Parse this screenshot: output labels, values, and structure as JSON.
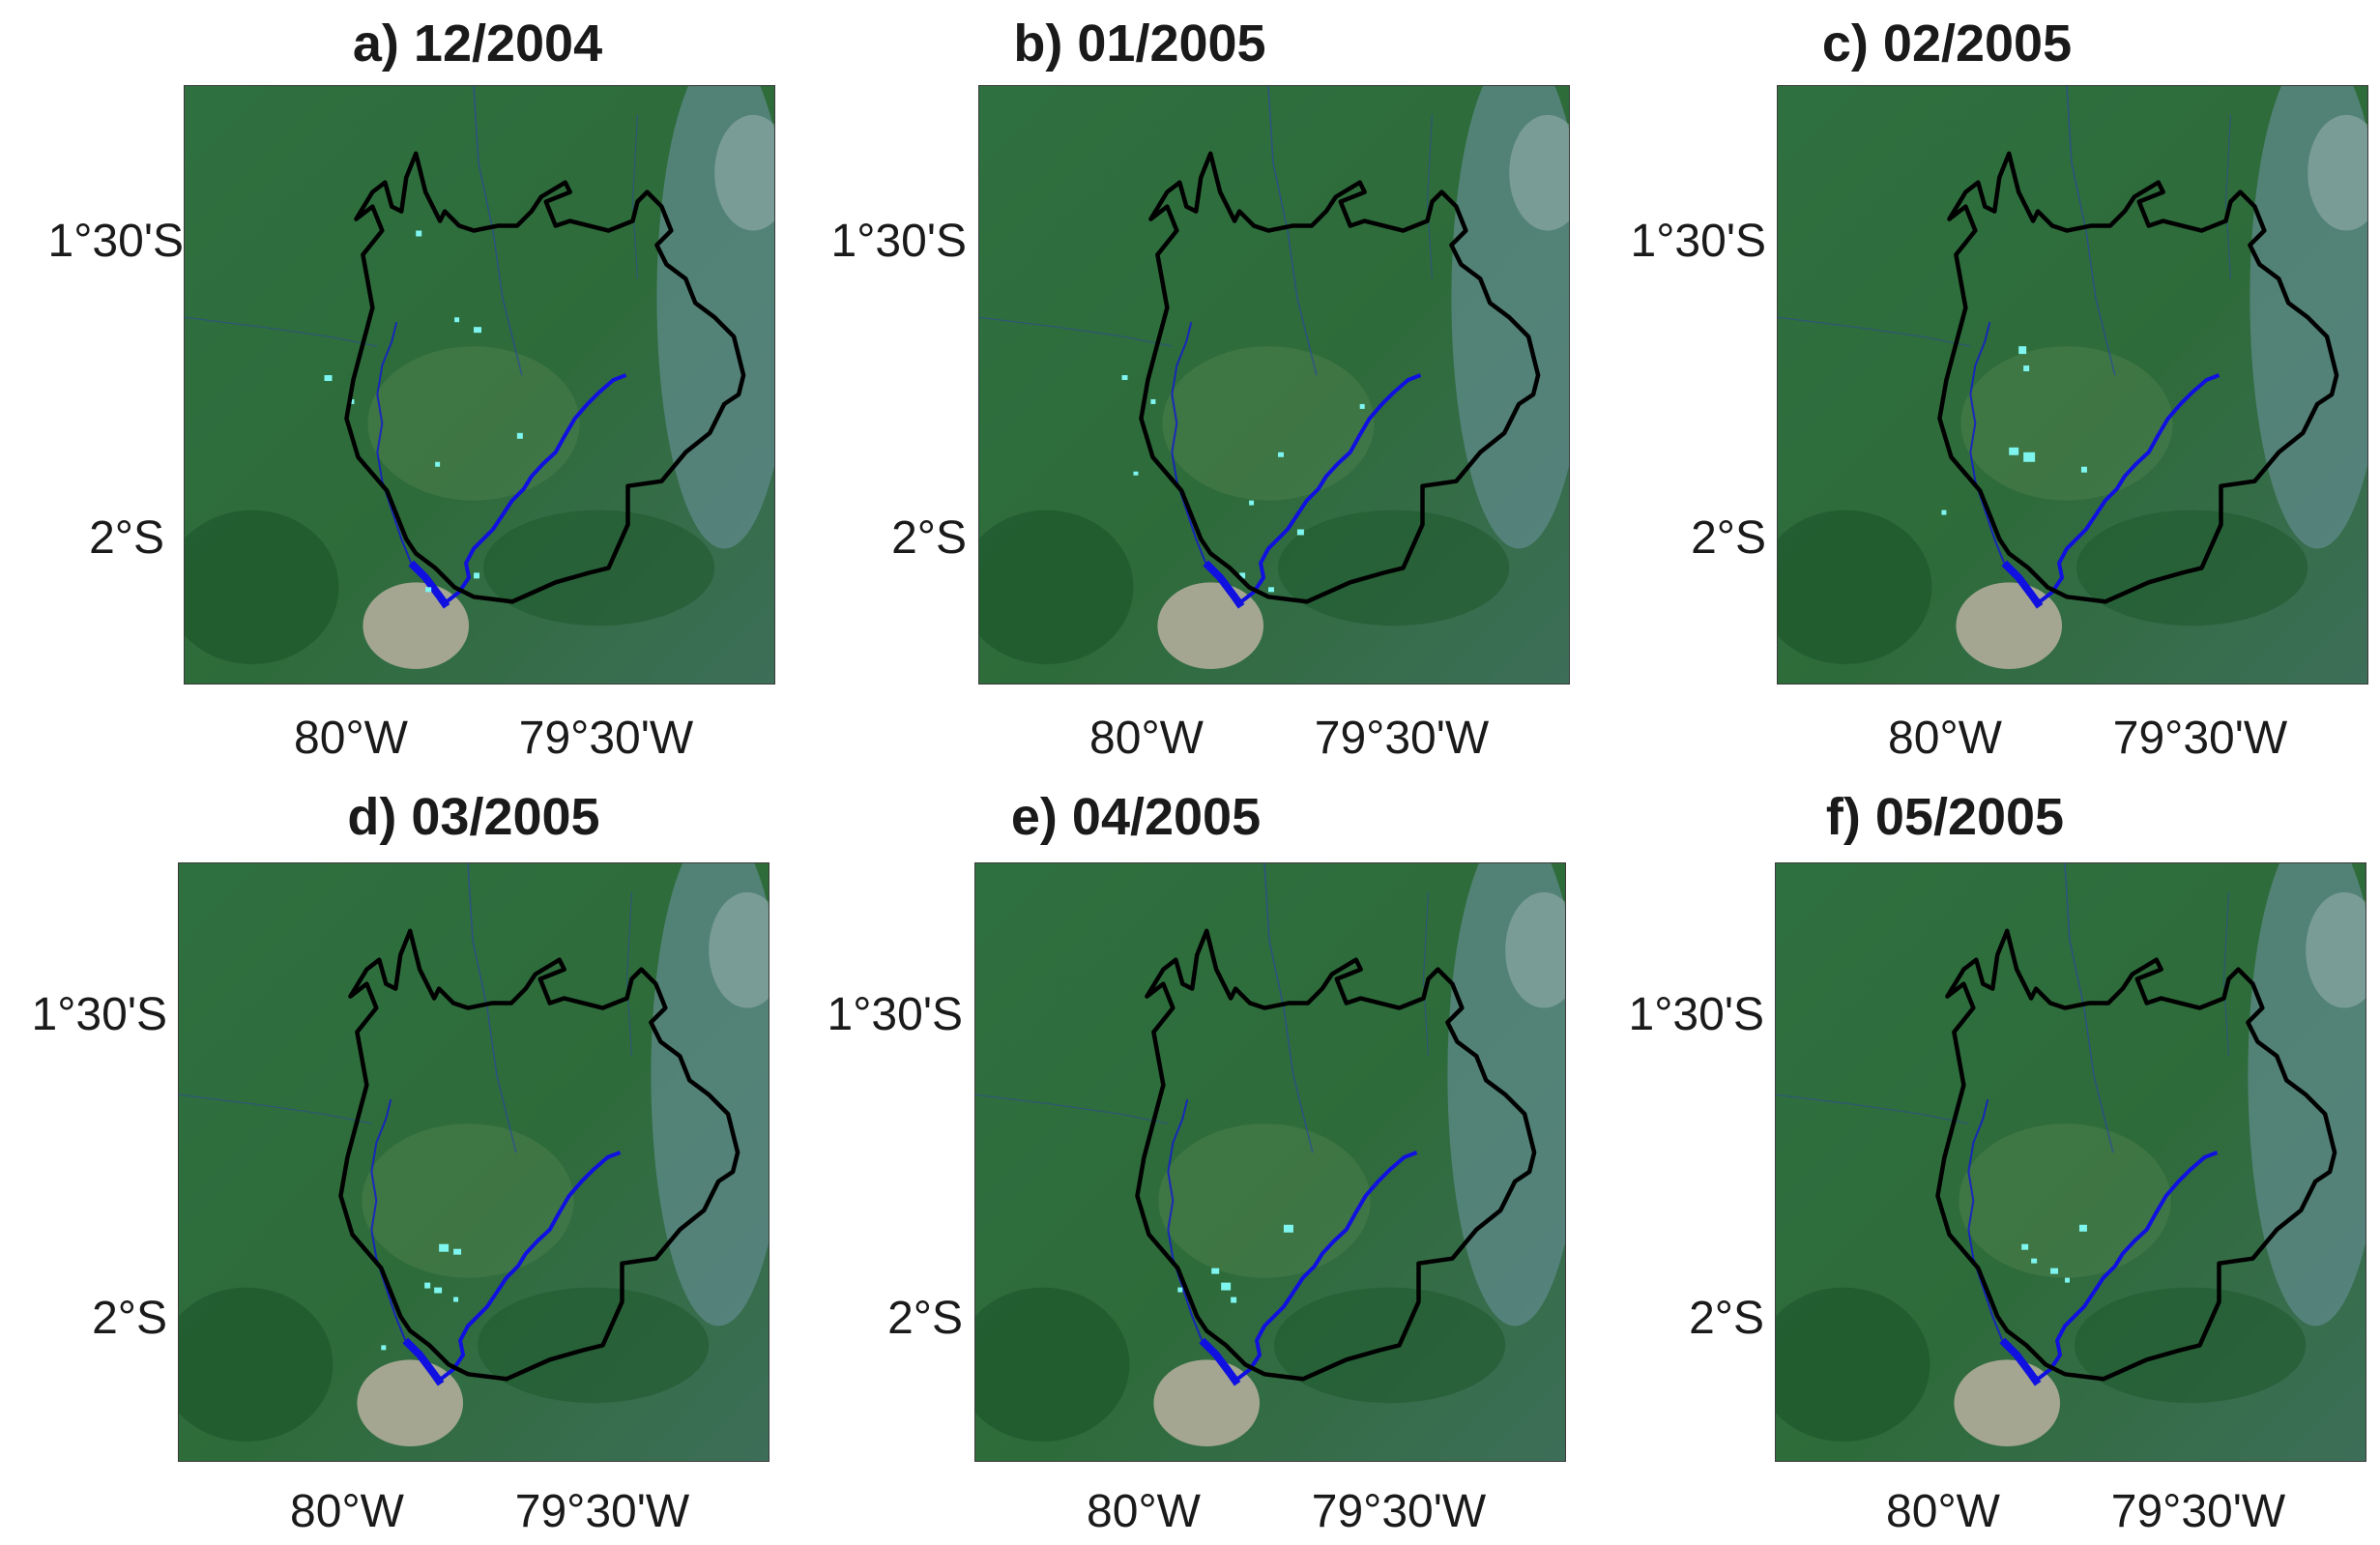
{
  "figure": {
    "panels": [
      {
        "title": "a) 12/2004",
        "lat_labels": [
          "1°30'S",
          "2°S"
        ],
        "lon_labels": [
          "80°W",
          "79°30'W"
        ]
      },
      {
        "title": "b) 01/2005",
        "lat_labels": [
          "1°30'S",
          "2°S"
        ],
        "lon_labels": [
          "80°W",
          "79°30'W"
        ]
      },
      {
        "title": "c) 02/2005",
        "lat_labels": [
          "1°30'S",
          "2°S"
        ],
        "lon_labels": [
          "80°W",
          "79°30'W"
        ]
      },
      {
        "title": "d) 03/2005",
        "lat_labels": [
          "1°30'S",
          "2°S"
        ],
        "lon_labels": [
          "80°W",
          "79°30'W"
        ]
      },
      {
        "title": "e) 04/2005",
        "lat_labels": [
          "1°30'S",
          "2°S"
        ],
        "lon_labels": [
          "80°W",
          "79°30'W"
        ]
      },
      {
        "title": "f) 05/2005",
        "lat_labels": [
          "1°30'S",
          "2°S"
        ],
        "lon_labels": [
          "80°W",
          "79°30'W"
        ]
      }
    ],
    "colors": {
      "vegetation": "#2e6b3a",
      "forest_dark": "#1f5a2e",
      "urban": "#b8b0a0",
      "highland": "#5f8a8a",
      "boundary": "#000000",
      "river": "#1010e0",
      "flood_pixels": "#7ff5f0"
    }
  }
}
